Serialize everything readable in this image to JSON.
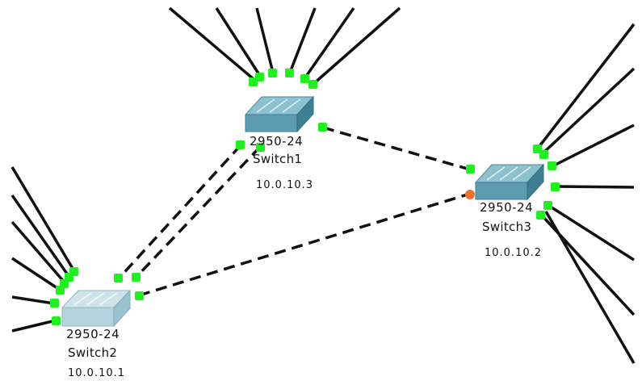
{
  "colors": {
    "background": "#ffffff",
    "link": "#111111",
    "port_up": "#22ee22",
    "port_down": "#f07030",
    "switch_dark_top": "#8cc0cf",
    "switch_dark_side": "#3f7f92",
    "switch_light_top": "#cfe3ea",
    "switch_light_side": "#9cc2d0"
  },
  "devices": {
    "switch1": {
      "model": "2950-24",
      "name": "Switch1",
      "ip": "10.0.10.3",
      "icon": "switch-icon"
    },
    "switch2": {
      "model": "2950-24",
      "name": "Switch2",
      "ip": "10.0.10.1",
      "icon": "switch-icon"
    },
    "switch3": {
      "model": "2950-24",
      "name": "Switch3",
      "ip": "10.0.10.2",
      "icon": "switch-icon"
    }
  },
  "links": [
    {
      "from": "switch1",
      "to": "switch3",
      "style": "dashed",
      "from_port": "up",
      "to_port": "up"
    },
    {
      "from": "switch1",
      "to": "switch2",
      "style": "dashed",
      "from_port": "up",
      "to_port": "up"
    },
    {
      "from": "switch1",
      "to": "switch2",
      "style": "dashed",
      "from_port": "up",
      "to_port": "up"
    },
    {
      "from": "switch2",
      "to": "switch3",
      "style": "dashed",
      "from_port": "up",
      "to_port": "down"
    }
  ],
  "host_links": {
    "switch1": 6,
    "switch2": 6,
    "switch3": 7
  }
}
